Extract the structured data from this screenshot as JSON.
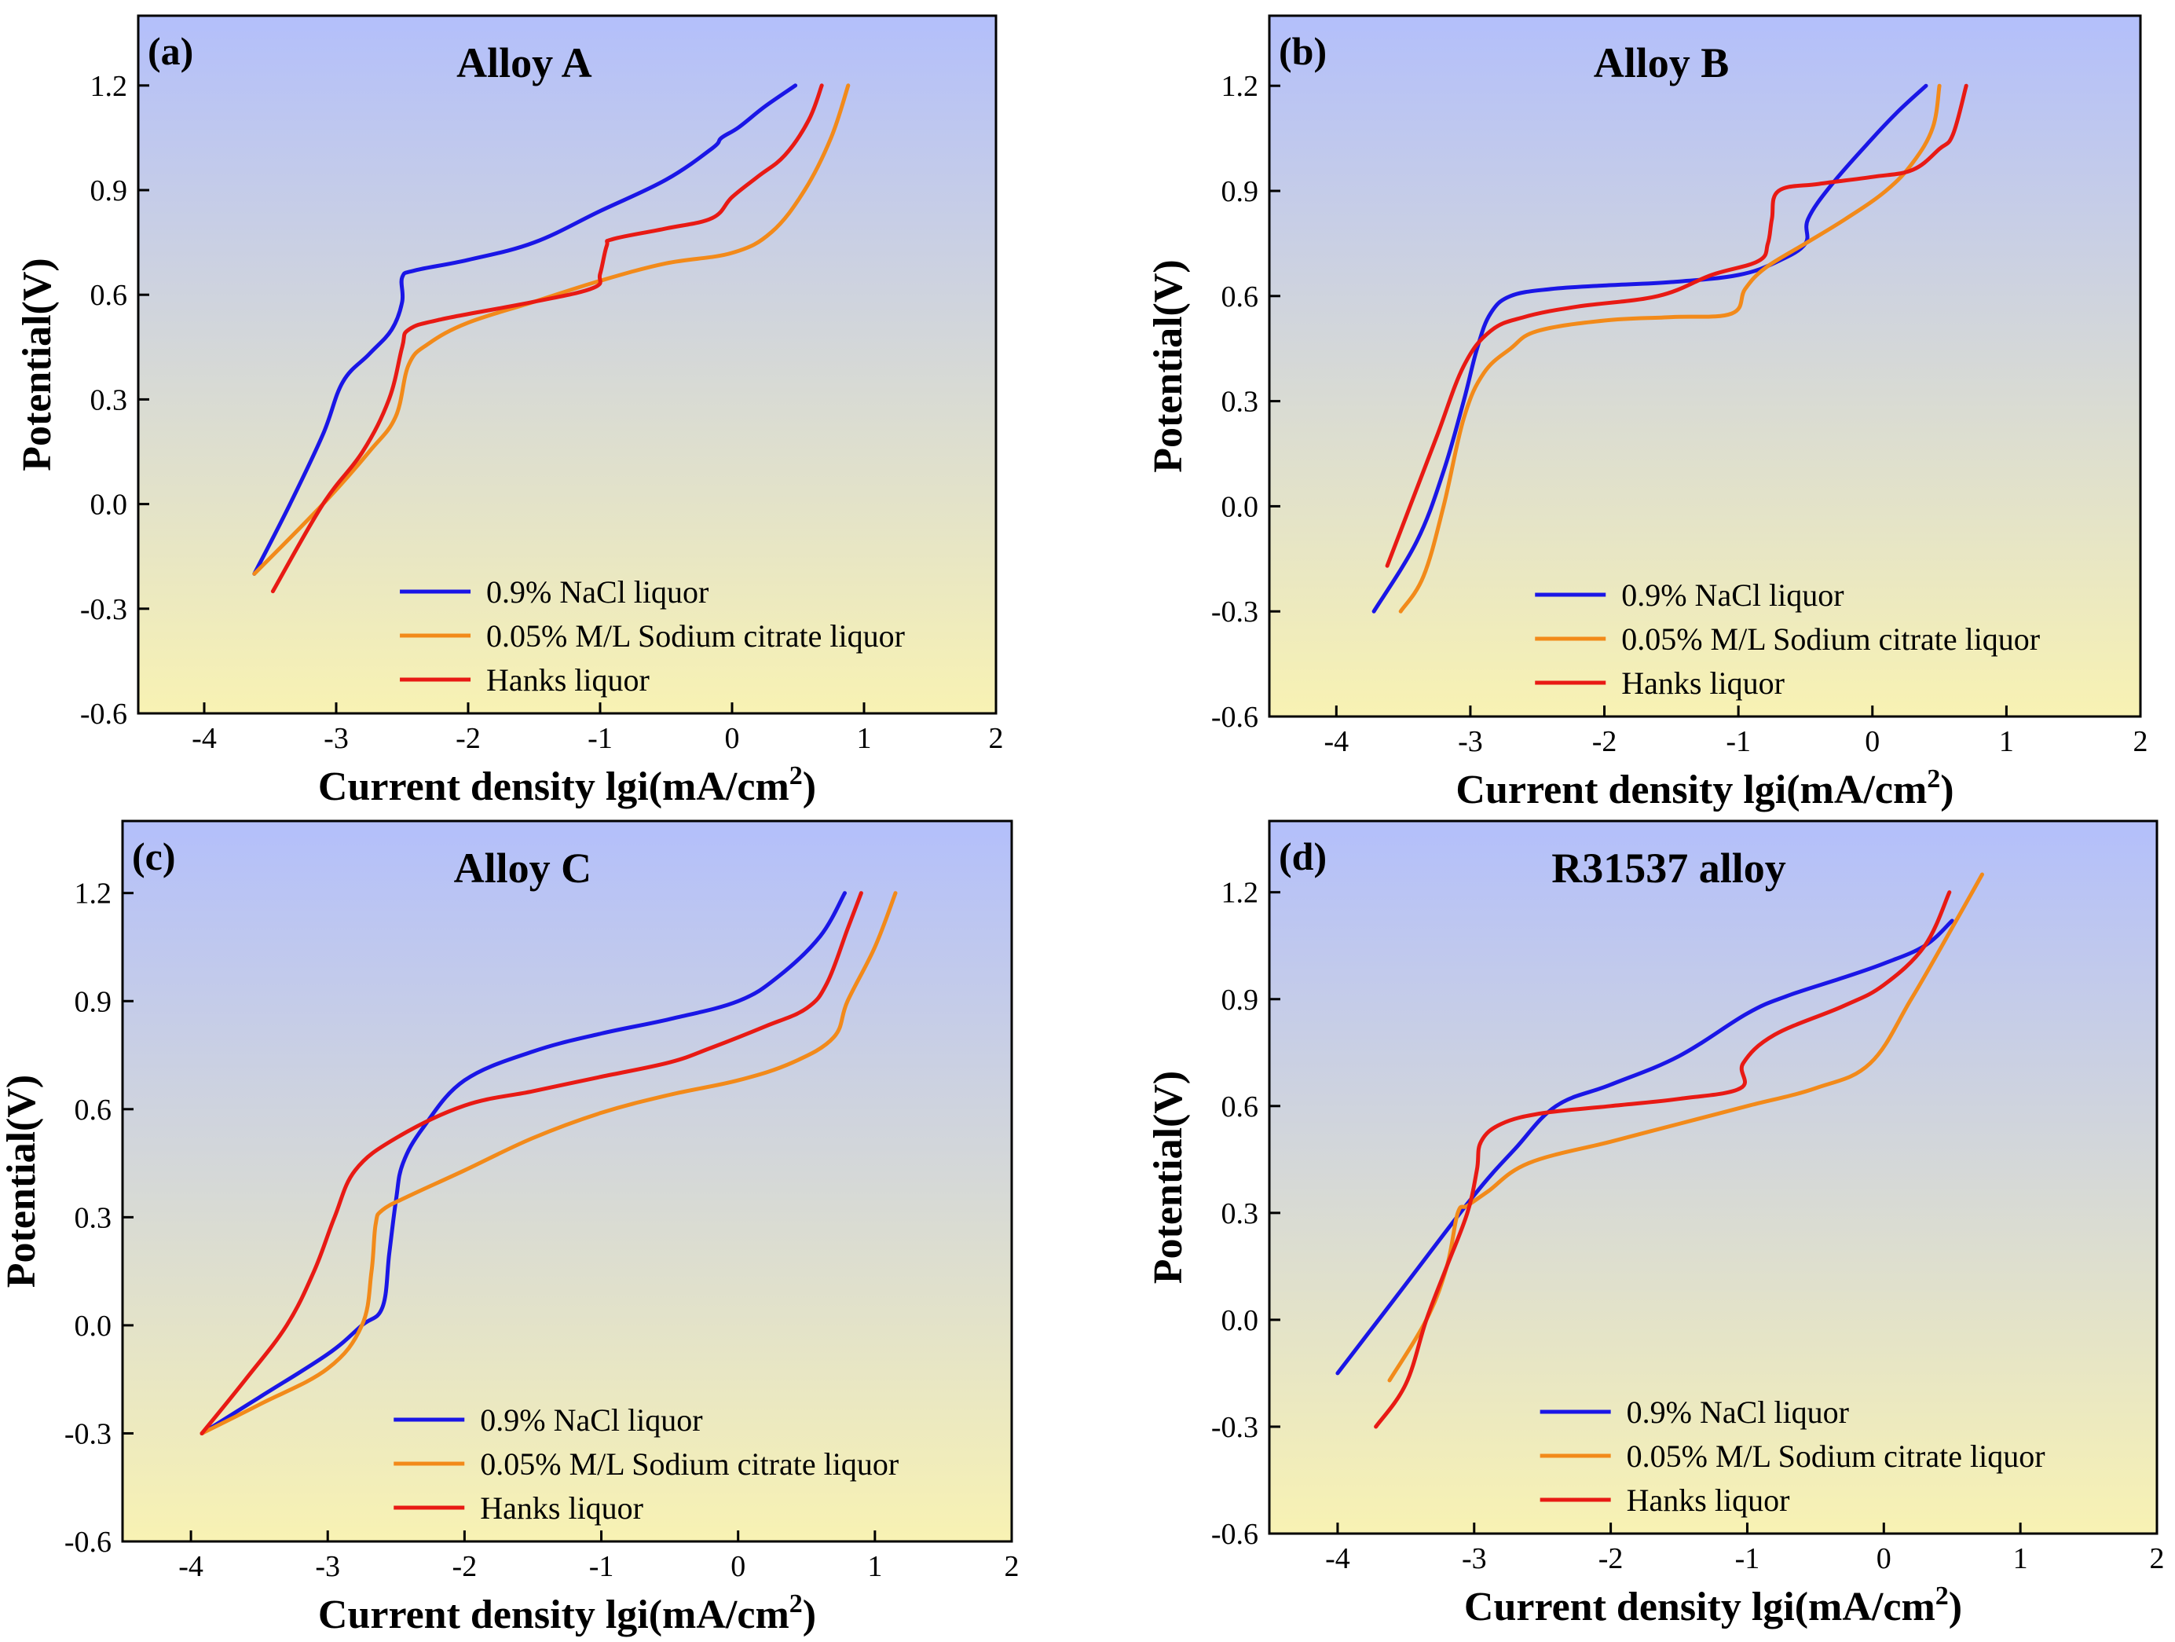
{
  "chart_data": [
    {
      "type": "line",
      "panel_label": "(a)",
      "title": "Alloy A",
      "xlabel": "Current density lgi(mA/cm",
      "xlabel_sup": "2",
      "xlabel_tail": ")",
      "ylabel": "Potential(V)",
      "xlim": [
        -4.5,
        2
      ],
      "ylim": [
        -0.6,
        1.4
      ],
      "xticks": [
        -4,
        -3,
        -2,
        -1,
        0,
        1,
        2
      ],
      "yticks": [
        -0.6,
        -0.3,
        0.0,
        0.3,
        0.6,
        0.9,
        1.2
      ],
      "ytick_labels": [
        "-0.6",
        "-0.3",
        "0.0",
        "0.3",
        "0.6",
        "0.9",
        "1.2"
      ],
      "background_gradient": [
        "#b3bffb",
        "#f8f2b3"
      ],
      "legend_position": "bottom-right",
      "series": [
        {
          "name": "0.9% NaCl liquor",
          "color": "#1a16e6",
          "x": [
            -3.62,
            -3.35,
            -3.1,
            -2.95,
            -2.75,
            -2.58,
            -2.5,
            -2.5,
            -2.4,
            -2.0,
            -1.5,
            -1.0,
            -0.5,
            -0.15,
            -0.08,
            0.05,
            0.25,
            0.48
          ],
          "y": [
            -0.2,
            0.0,
            0.2,
            0.35,
            0.43,
            0.5,
            0.58,
            0.65,
            0.67,
            0.7,
            0.75,
            0.84,
            0.93,
            1.02,
            1.05,
            1.08,
            1.14,
            1.2
          ]
        },
        {
          "name": "0.05% M/L Sodium citrate liquor",
          "color": "#f28a1a",
          "x": [
            -3.62,
            -3.1,
            -2.75,
            -2.55,
            -2.45,
            -2.3,
            -2.0,
            -1.5,
            -1.0,
            -0.5,
            0.0,
            0.3,
            0.55,
            0.75,
            0.88
          ],
          "y": [
            -0.2,
            0.0,
            0.15,
            0.25,
            0.4,
            0.46,
            0.52,
            0.58,
            0.64,
            0.69,
            0.72,
            0.78,
            0.9,
            1.05,
            1.2
          ]
        },
        {
          "name": "Hanks liquor",
          "color": "#e81a14",
          "x": [
            -3.48,
            -3.1,
            -2.8,
            -2.6,
            -2.5,
            -2.45,
            -2.2,
            -1.5,
            -1.05,
            -1.0,
            -0.95,
            -0.9,
            -0.5,
            -0.15,
            0.0,
            0.2,
            0.4,
            0.58,
            0.68
          ],
          "y": [
            -0.25,
            0.0,
            0.15,
            0.3,
            0.45,
            0.5,
            0.53,
            0.58,
            0.62,
            0.66,
            0.74,
            0.76,
            0.79,
            0.82,
            0.88,
            0.94,
            1.0,
            1.1,
            1.2
          ]
        }
      ]
    },
    {
      "type": "line",
      "panel_label": "(b)",
      "title": "Alloy B",
      "xlabel": "Current density lgi(mA/cm",
      "xlabel_sup": "2",
      "xlabel_tail": ")",
      "ylabel": "Potential(V)",
      "xlim": [
        -4.5,
        2
      ],
      "ylim": [
        -0.6,
        1.4
      ],
      "xticks": [
        -4,
        -3,
        -2,
        -1,
        0,
        1,
        2
      ],
      "yticks": [
        -0.6,
        -0.3,
        0.0,
        0.3,
        0.6,
        0.9,
        1.2
      ],
      "ytick_labels": [
        "-0.6",
        "-0.3",
        "0.0",
        "0.3",
        "0.6",
        "0.9",
        "1.2"
      ],
      "background_gradient": [
        "#b3bffb",
        "#f8f2b3"
      ],
      "legend_position": "bottom-right",
      "series": [
        {
          "name": "0.9% NaCl liquor",
          "color": "#1a16e6",
          "x": [
            -3.72,
            -3.4,
            -3.2,
            -3.05,
            -2.95,
            -2.85,
            -2.7,
            -2.4,
            -2.0,
            -1.5,
            -1.0,
            -0.7,
            -0.5,
            -0.48,
            -0.3,
            0.0,
            0.2,
            0.4
          ],
          "y": [
            -0.3,
            -0.1,
            0.1,
            0.3,
            0.45,
            0.55,
            0.6,
            0.62,
            0.63,
            0.64,
            0.66,
            0.7,
            0.75,
            0.82,
            0.92,
            1.05,
            1.13,
            1.2
          ]
        },
        {
          "name": "0.05% M/L Sodium citrate liquor",
          "color": "#f28a1a",
          "x": [
            -3.52,
            -3.35,
            -3.2,
            -3.05,
            -2.9,
            -2.7,
            -2.5,
            -2.0,
            -1.5,
            -1.05,
            -0.95,
            -0.8,
            -0.5,
            -0.2,
            0.1,
            0.3,
            0.45,
            0.5
          ],
          "y": [
            -0.3,
            -0.2,
            0.0,
            0.25,
            0.38,
            0.45,
            0.5,
            0.53,
            0.54,
            0.55,
            0.62,
            0.68,
            0.75,
            0.82,
            0.9,
            0.98,
            1.08,
            1.2
          ]
        },
        {
          "name": "Hanks liquor",
          "color": "#e81a14",
          "x": [
            -3.62,
            -3.45,
            -3.25,
            -3.05,
            -2.85,
            -2.6,
            -2.2,
            -1.6,
            -1.2,
            -0.85,
            -0.78,
            -0.75,
            -0.7,
            -0.4,
            0.0,
            0.3,
            0.5,
            0.6,
            0.7
          ],
          "y": [
            -0.17,
            0.0,
            0.2,
            0.4,
            0.5,
            0.54,
            0.57,
            0.6,
            0.66,
            0.7,
            0.75,
            0.82,
            0.9,
            0.92,
            0.94,
            0.96,
            1.02,
            1.06,
            1.2
          ]
        }
      ]
    },
    {
      "type": "line",
      "panel_label": "(c)",
      "title": "Alloy C",
      "xlabel": "Current density lgi(mA/cm",
      "xlabel_sup": "2",
      "xlabel_tail": ")",
      "ylabel": "Potential(V)",
      "xlim": [
        -4.5,
        2
      ],
      "ylim": [
        -0.6,
        1.4
      ],
      "xticks": [
        -4,
        -3,
        -2,
        -1,
        0,
        1,
        2
      ],
      "yticks": [
        -0.6,
        -0.3,
        0.0,
        0.3,
        0.6,
        0.9,
        1.2
      ],
      "ytick_labels": [
        "-0.6",
        "-0.3",
        "0.0",
        "0.3",
        "0.6",
        "0.9",
        "1.2"
      ],
      "background_gradient": [
        "#b3bffb",
        "#f8f2b3"
      ],
      "legend_position": "bottom-right",
      "series": [
        {
          "name": "0.9% NaCl liquor",
          "color": "#1a16e6",
          "x": [
            -3.92,
            -3.5,
            -3.0,
            -2.75,
            -2.6,
            -2.55,
            -2.5,
            -2.45,
            -2.3,
            -2.0,
            -1.5,
            -1.0,
            -0.5,
            0.0,
            0.3,
            0.6,
            0.78
          ],
          "y": [
            -0.3,
            -0.2,
            -0.08,
            0.0,
            0.05,
            0.2,
            0.35,
            0.45,
            0.55,
            0.68,
            0.76,
            0.81,
            0.85,
            0.9,
            0.97,
            1.08,
            1.2
          ]
        },
        {
          "name": "0.05% M/L Sodium citrate liquor",
          "color": "#f28a1a",
          "x": [
            -3.92,
            -3.5,
            -3.0,
            -2.75,
            -2.68,
            -2.65,
            -2.6,
            -2.4,
            -2.0,
            -1.5,
            -1.0,
            -0.5,
            0.0,
            0.4,
            0.7,
            0.8,
            1.0,
            1.15
          ],
          "y": [
            -0.3,
            -0.22,
            -0.12,
            0.0,
            0.15,
            0.28,
            0.32,
            0.36,
            0.43,
            0.52,
            0.59,
            0.64,
            0.68,
            0.73,
            0.8,
            0.9,
            1.05,
            1.2
          ]
        },
        {
          "name": "Hanks liquor",
          "color": "#e81a14",
          "x": [
            -3.92,
            -3.6,
            -3.3,
            -3.1,
            -2.95,
            -2.8,
            -2.5,
            -2.0,
            -1.5,
            -1.0,
            -0.5,
            -0.2,
            0.2,
            0.5,
            0.65,
            0.8,
            0.9
          ],
          "y": [
            -0.3,
            -0.15,
            0.0,
            0.15,
            0.3,
            0.43,
            0.52,
            0.61,
            0.65,
            0.69,
            0.73,
            0.77,
            0.83,
            0.88,
            0.95,
            1.1,
            1.2
          ]
        }
      ]
    },
    {
      "type": "line",
      "panel_label": "(d)",
      "title": "R31537 alloy",
      "xlabel": "Current density lgi(mA/cm",
      "xlabel_sup": "2",
      "xlabel_tail": ")",
      "ylabel": "Potential(V)",
      "xlim": [
        -4.5,
        2
      ],
      "ylim": [
        -0.6,
        1.4
      ],
      "xticks": [
        -4,
        -3,
        -2,
        -1,
        0,
        1,
        2
      ],
      "yticks": [
        -0.6,
        -0.3,
        0.0,
        0.3,
        0.6,
        0.9,
        1.2
      ],
      "ytick_labels": [
        "-0.6",
        "-0.3",
        "0.0",
        "0.3",
        "0.6",
        "0.9",
        "1.2"
      ],
      "background_gradient": [
        "#b3bffb",
        "#f8f2b3"
      ],
      "legend_position": "bottom-right",
      "series": [
        {
          "name": "0.9% NaCl liquor",
          "color": "#1a16e6",
          "x": [
            -4.0,
            -3.5,
            -3.0,
            -2.7,
            -2.4,
            -2.0,
            -1.5,
            -1.0,
            -0.7,
            -0.3,
            0.0,
            0.3,
            0.5
          ],
          "y": [
            -0.15,
            0.1,
            0.35,
            0.48,
            0.6,
            0.66,
            0.74,
            0.86,
            0.91,
            0.96,
            1.0,
            1.05,
            1.12
          ]
        },
        {
          "name": "0.05% M/L Sodium citrate liquor",
          "color": "#f28a1a",
          "x": [
            -3.62,
            -3.35,
            -3.2,
            -3.12,
            -3.05,
            -2.9,
            -2.6,
            -2.0,
            -1.5,
            -1.0,
            -0.5,
            -0.1,
            0.2,
            0.5,
            0.72
          ],
          "y": [
            -0.17,
            0.0,
            0.15,
            0.3,
            0.32,
            0.36,
            0.44,
            0.5,
            0.55,
            0.6,
            0.65,
            0.72,
            0.9,
            1.1,
            1.25
          ]
        },
        {
          "name": "Hanks liquor",
          "color": "#e81a14",
          "x": [
            -3.72,
            -3.5,
            -3.35,
            -3.2,
            -3.05,
            -2.98,
            -2.95,
            -2.8,
            -2.5,
            -2.0,
            -1.5,
            -1.05,
            -1.03,
            -0.8,
            -0.3,
            0.0,
            0.3,
            0.48
          ],
          "y": [
            -0.3,
            -0.18,
            0.0,
            0.15,
            0.3,
            0.42,
            0.5,
            0.55,
            0.58,
            0.6,
            0.62,
            0.65,
            0.72,
            0.8,
            0.88,
            0.94,
            1.05,
            1.2
          ]
        }
      ]
    }
  ]
}
